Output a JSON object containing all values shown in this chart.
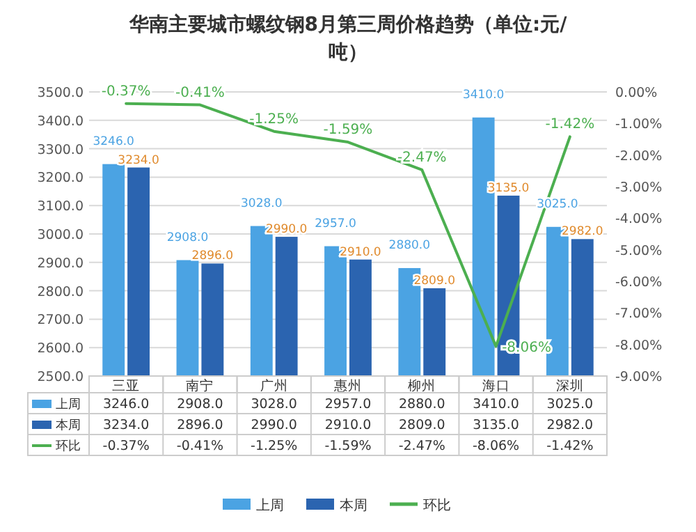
{
  "chart_data": {
    "type": "bar",
    "title": "华南主要城市螺纹钢8月第三周价格趋势（单位:元/吨）",
    "categories": [
      "三亚",
      "南宁",
      "广州",
      "惠州",
      "柳州",
      "海口",
      "深圳"
    ],
    "series": [
      {
        "name": "上周",
        "color": "#4ba3e3",
        "values": [
          3246.0,
          2908.0,
          3028.0,
          2957.0,
          2880.0,
          3410.0,
          3025.0
        ],
        "value_labels": [
          "3246.0",
          "2908.0",
          "3028.0",
          "2957.0",
          "2880.0",
          "3410.0",
          "3025.0"
        ]
      },
      {
        "name": "本周",
        "color": "#2b64b0",
        "values": [
          3234.0,
          2896.0,
          2990.0,
          2910.0,
          2809.0,
          3135.0,
          2982.0
        ],
        "value_labels": [
          "3234.0",
          "2896.0",
          "2990.0",
          "2910.0",
          "2809.0",
          "3135.0",
          "2982.0"
        ]
      },
      {
        "name": "环比",
        "type": "line",
        "axis": "y2",
        "color": "#4caf50",
        "values": [
          -0.37,
          -0.41,
          -1.25,
          -1.59,
          -2.47,
          -8.06,
          -1.42
        ],
        "value_labels": [
          "-0.37%",
          "-0.41%",
          "-1.25%",
          "-1.59%",
          "-2.47%",
          "-8.06%",
          "-1.42%"
        ]
      }
    ],
    "ylim": [
      2500,
      3500
    ],
    "yticks": [
      {
        "value": 2500,
        "label": "2500.0"
      },
      {
        "value": 2600,
        "label": "2600.0"
      },
      {
        "value": 2700,
        "label": "2700.0"
      },
      {
        "value": 2800,
        "label": "2800.0"
      },
      {
        "value": 2900,
        "label": "2900.0"
      },
      {
        "value": 3000,
        "label": "3000.0"
      },
      {
        "value": 3100,
        "label": "3100.0"
      },
      {
        "value": 3200,
        "label": "3200.0"
      },
      {
        "value": 3300,
        "label": "3300.0"
      },
      {
        "value": 3400,
        "label": "3400.0"
      },
      {
        "value": 3500,
        "label": "3500.0"
      }
    ],
    "y2lim": [
      -9,
      0
    ],
    "y2ticks": [
      {
        "value": 0,
        "label": "0.00%"
      },
      {
        "value": -1,
        "label": "-1.00%"
      },
      {
        "value": -2,
        "label": "-2.00%"
      },
      {
        "value": -3,
        "label": "-3.00%"
      },
      {
        "value": -4,
        "label": "-4.00%"
      },
      {
        "value": -5,
        "label": "-5.00%"
      },
      {
        "value": -6,
        "label": "-6.00%"
      },
      {
        "value": -7,
        "label": "-7.00%"
      },
      {
        "value": -8,
        "label": "-8.00%"
      },
      {
        "value": -9,
        "label": "-9.00%"
      }
    ],
    "grid": "y",
    "legend": "bottom"
  }
}
